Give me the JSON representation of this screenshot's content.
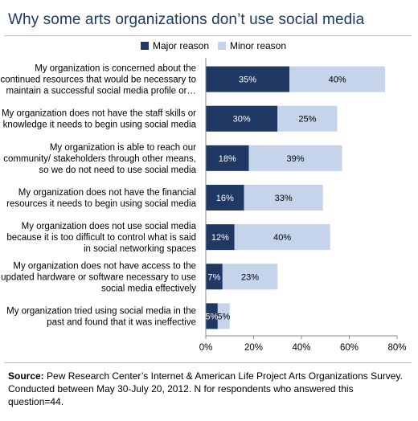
{
  "title": "Why some arts organizations don’t use social media",
  "source": {
    "label": "Source:",
    "text": " Pew Research Center’s Internet & American Life Project Arts Organizations Survey. Conducted between May 30-July 20, 2012. N for respondents who answered this question=44."
  },
  "chart_data": {
    "type": "bar",
    "orientation": "horizontal",
    "stacked": true,
    "categories": [
      [
        "My organization is concerned about the",
        "continued resources that would be necessary to",
        "maintain a successful social media profile or…"
      ],
      [
        "My organization does not have the staff skills or",
        "knowledge it needs to begin using social media"
      ],
      [
        "My organization is able to reach our",
        "community/ stakeholders through other means,",
        "so we do not need to use social media"
      ],
      [
        "My organization does not have the financial",
        "resources it needs to begin using social media"
      ],
      [
        "My organization does not use social media",
        "because it is too difficult to control what is said",
        "in social networking spaces"
      ],
      [
        "My organization does not have access to the",
        "updated hardware or software necessary to use",
        "social media effectively"
      ],
      [
        "My organization tried using social media in the",
        "past and found that it was ineffective"
      ]
    ],
    "series": [
      {
        "name": "Major reason",
        "color": "#1f3864",
        "label_color": "#ffffff",
        "values": [
          35,
          30,
          18,
          16,
          12,
          7,
          5
        ]
      },
      {
        "name": "Minor reason",
        "color": "#c5d4ea",
        "label_color": "#000000",
        "values": [
          40,
          25,
          39,
          33,
          40,
          23,
          5
        ]
      }
    ],
    "xlim": [
      0,
      80
    ],
    "xticks": [
      "0%",
      "20%",
      "40%",
      "60%",
      "80%"
    ],
    "value_suffix": "%",
    "legend_position": "top",
    "grid": false
  }
}
